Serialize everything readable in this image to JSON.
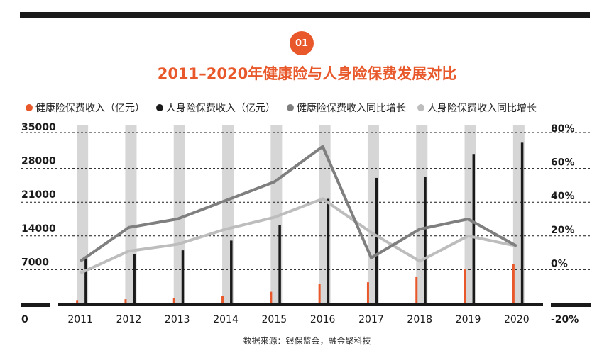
{
  "badge": "01",
  "title": "2011–2020年健康险与人身险保费发展对比",
  "source": "数据来源：银保监会，融金聚科技",
  "colors": {
    "health_bar": "#e8582a",
    "life_bar": "#1a1a1a",
    "health_growth": "#7f7f80",
    "life_growth": "#bdbdbd",
    "bg_column": "#d6d6d6",
    "accent": "#e8582a"
  },
  "legend": [
    {
      "label": "健康险保费收入（亿元）",
      "color": "#e8582a"
    },
    {
      "label": "人身险保费收入（亿元）",
      "color": "#1a1a1a"
    },
    {
      "label": "健康险保费收入同比增长",
      "color": "#7f7f80"
    },
    {
      "label": "人身险保费收入同比增长",
      "color": "#bdbdbd"
    }
  ],
  "chart_data": {
    "type": "bar",
    "categories": [
      "2011",
      "2012",
      "2013",
      "2014",
      "2015",
      "2016",
      "2017",
      "2018",
      "2019",
      "2020"
    ],
    "series": [
      {
        "name": "健康险保费收入（亿元）",
        "type": "bar",
        "axis": "left",
        "values": [
          692,
          863,
          1123,
          1587,
          2410,
          4042,
          4389,
          5448,
          7066,
          8173
        ]
      },
      {
        "name": "人身险保费收入（亿元）",
        "type": "bar",
        "axis": "left",
        "values": [
          9700,
          10157,
          11009,
          13031,
          16288,
          21692,
          26040,
          26260,
          30995,
          33329
        ]
      },
      {
        "name": "健康险保费收入同比增长",
        "type": "line",
        "axis": "right",
        "values": [
          0.05,
          0.25,
          0.3,
          0.41,
          0.52,
          0.73,
          0.07,
          0.24,
          0.3,
          0.14
        ]
      },
      {
        "name": "人身险保费收入同比增长",
        "type": "line",
        "axis": "right",
        "values": [
          -0.02,
          0.11,
          0.15,
          0.24,
          0.31,
          0.42,
          0.22,
          0.05,
          0.2,
          0.14
        ]
      }
    ],
    "left_axis": {
      "ticks": [
        "0",
        "7000",
        "14000",
        "21000",
        "28000",
        "35000"
      ],
      "ylim": [
        0,
        35000
      ]
    },
    "right_axis": {
      "ticks": [
        "-20%",
        "0%",
        "20%",
        "40%",
        "60%",
        "80%"
      ],
      "ylim": [
        -0.2,
        0.8
      ]
    },
    "legend_position": "top",
    "grid": true
  }
}
